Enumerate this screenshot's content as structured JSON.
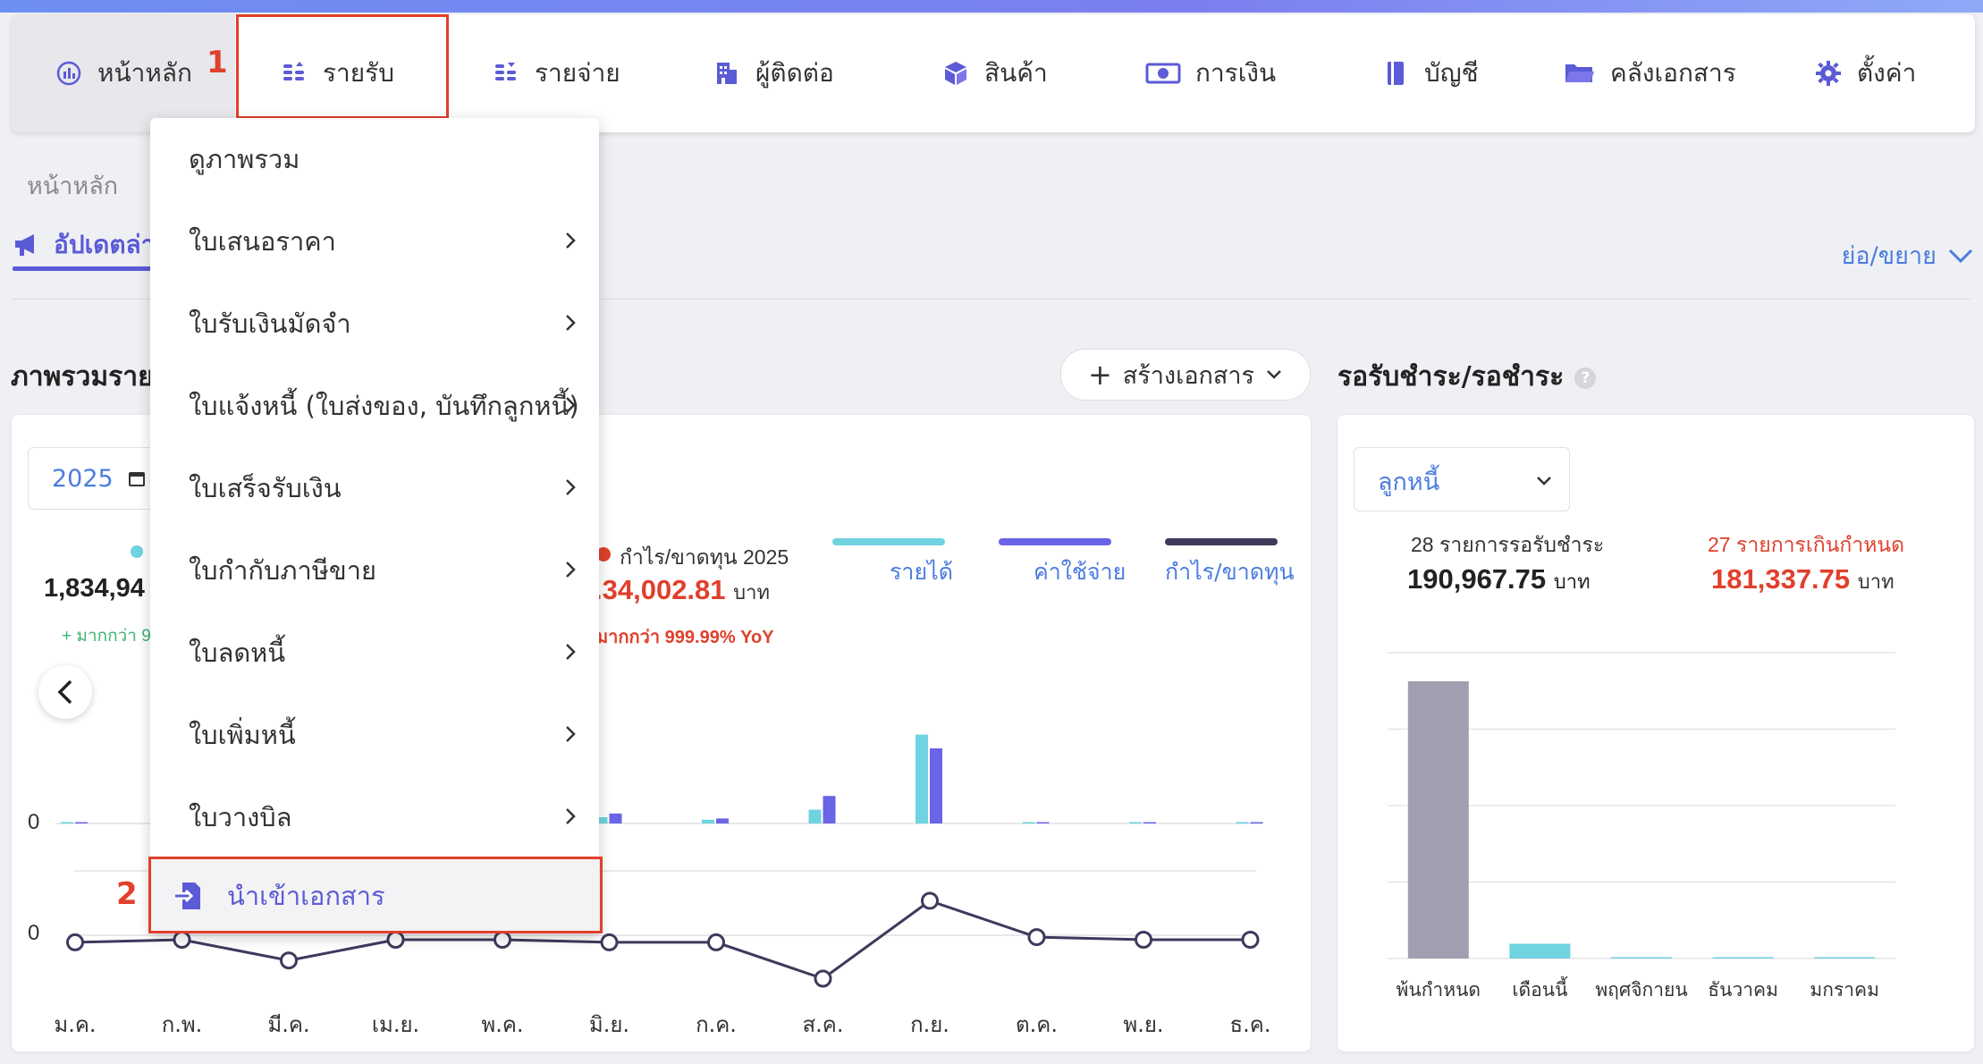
{
  "nav": {
    "items": [
      {
        "label": "หน้าหลัก",
        "icon": "chart-circle-icon"
      },
      {
        "label": "รายรับ",
        "icon": "coins-up-icon"
      },
      {
        "label": "รายจ่าย",
        "icon": "coins-down-icon"
      },
      {
        "label": "ผู้ติดต่อ",
        "icon": "building-icon"
      },
      {
        "label": "สินค้า",
        "icon": "box-icon"
      },
      {
        "label": "การเงิน",
        "icon": "money-icon"
      },
      {
        "label": "บัญชี",
        "icon": "ledger-icon"
      },
      {
        "label": "คลังเอกสาร",
        "icon": "folder-icon"
      },
      {
        "label": "ตั้งค่า",
        "icon": "gear-icon"
      }
    ]
  },
  "steps": {
    "one": "1",
    "two": "2"
  },
  "breadcrumb": "หน้าหลัก",
  "updates_tab": {
    "label": "อัปเดตล่าสุด"
  },
  "collapse_toggle": "ย่อ/ขยาย",
  "overview": {
    "title": "ภาพรวมรายรับรายจ่าย"
  },
  "create_button": "สร้างเอกสาร",
  "pending": {
    "title": "รอรับชำระ/รอชำระ",
    "help": "?"
  },
  "chart_card": {
    "year": "2025",
    "revenue_value": "1,834,94",
    "revenue_change": "+ มากกว่า 9",
    "profit_label": "กำไร/ขาดทุน 2025",
    "profit_value": ".34,002.81",
    "profit_unit": "บาท",
    "profit_change": "มากกว่า 999.99% YoY",
    "legend": [
      "รายได้",
      "ค่าใช้จ่าย",
      "กำไร/ขาดทุน"
    ],
    "zero_label": "0"
  },
  "dropdown": {
    "items": [
      {
        "label": "ดูภาพรวม",
        "submenu": false
      },
      {
        "label": "ใบเสนอราคา",
        "submenu": true
      },
      {
        "label": "ใบรับเงินมัดจำ",
        "submenu": true
      },
      {
        "label": "ใบแจ้งหนี้ (ใบส่งของ, บันทึกลูกหนี้)",
        "submenu": true
      },
      {
        "label": "ใบเสร็จรับเงิน",
        "submenu": true
      },
      {
        "label": "ใบกำกับภาษีขาย",
        "submenu": true
      },
      {
        "label": "ใบลดหนี้",
        "submenu": true
      },
      {
        "label": "ใบเพิ่มหนี้",
        "submenu": true
      },
      {
        "label": "ใบวางบิล",
        "submenu": true
      }
    ],
    "import_label": "นำเข้าเอกสาร"
  },
  "receivables": {
    "select_value": "ลูกหนี้",
    "pending_count": "28 รายการรอรับชำระ",
    "pending_amount": "190,967.75",
    "overdue_count": "27 รายการเกินกำหนด",
    "overdue_amount": "181,337.75",
    "unit": "บาท"
  },
  "colors": {
    "revenue": "#6fd3e0",
    "expense": "#6a64e6",
    "profit": "#3d3a5c",
    "alert": "#e0402c",
    "accent": "#5b5bd6"
  },
  "chart_data": [
    {
      "type": "bar",
      "categories": [
        "ม.ค.",
        "ก.พ.",
        "มี.ค.",
        "เม.ย.",
        "พ.ค.",
        "มิ.ย.",
        "ก.ค.",
        "ส.ค.",
        "ก.ย.",
        "ต.ค.",
        "พ.ย.",
        "ธ.ค."
      ],
      "series": [
        {
          "name": "รายได้",
          "values": [
            1,
            0,
            0,
            0,
            0,
            5,
            3,
            11,
            71,
            1,
            1,
            1
          ]
        },
        {
          "name": "ค่าใช้จ่าย",
          "values": [
            0,
            0,
            0,
            0,
            0,
            8,
            4,
            22,
            60,
            0,
            1,
            1
          ]
        }
      ],
      "note": "relative scale, no y tick values shown except 0"
    },
    {
      "type": "line",
      "categories": [
        "ม.ค.",
        "ก.พ.",
        "มี.ค.",
        "เม.ย.",
        "พ.ค.",
        "มิ.ย.",
        "ก.ค.",
        "ส.ค.",
        "ก.ย.",
        "ต.ค.",
        "พ.ย.",
        "ธ.ค."
      ],
      "series": [
        {
          "name": "กำไร/ขาดทุน",
          "values": [
            -1,
            0,
            -8,
            0,
            0,
            -1,
            -1,
            -15,
            15,
            1,
            0,
            0
          ]
        }
      ]
    },
    {
      "type": "bar",
      "categories": [
        "พ้นกำหนด",
        "เดือนนี้",
        "พฤศจิกายน",
        "ธันวาคม",
        "มกราคม"
      ],
      "values": [
        181337.75,
        9630,
        0,
        0,
        0
      ],
      "ylim": [
        0,
        200000
      ]
    }
  ]
}
